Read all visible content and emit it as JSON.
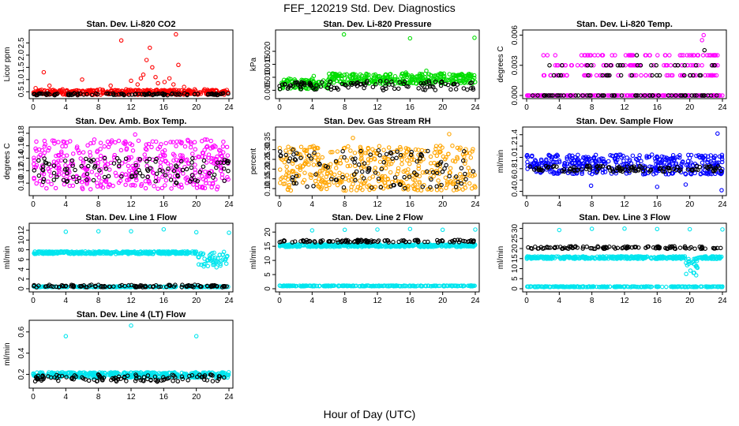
{
  "title": "FEF_120219  Std. Dev. Diagnostics",
  "xlabel": "Hour of Day (UTC)",
  "colors": {
    "black": "#000000",
    "red": "#ff0000",
    "green": "#00dd00",
    "magenta": "#ff00ff",
    "orange": "#ffa500",
    "blue": "#0000ff",
    "cyan": "#00e5ee"
  },
  "chart_data": [
    {
      "type": "scatter",
      "title": "Stan. Dev. Li-820 CO2",
      "ylabel": "Licor ppm",
      "xlim": [
        0,
        24
      ],
      "xticks": [
        "0",
        "4",
        "8",
        "12",
        "16",
        "20",
        "24"
      ],
      "ylim": [
        0.35,
        2.9
      ],
      "yticks": [
        "0.5",
        "1.0",
        "1.5",
        "2.0",
        "2.5"
      ],
      "series": [
        {
          "color": "red",
          "band": [
            0.38,
            0.58
          ],
          "points": [
            [
              1.3,
              1.3
            ],
            [
              6,
              1.0
            ],
            [
              10.8,
              2.6
            ],
            [
              12,
              0.95
            ],
            [
              12.8,
              0.8
            ],
            [
              13.2,
              1.05
            ],
            [
              13.5,
              1.2
            ],
            [
              13.9,
              1.8
            ],
            [
              14.3,
              2.3
            ],
            [
              14.6,
              1.5
            ],
            [
              15,
              1.1
            ],
            [
              15.3,
              0.85
            ],
            [
              16.1,
              0.9
            ],
            [
              16.7,
              1.05
            ],
            [
              17.2,
              0.8
            ],
            [
              17.5,
              2.85
            ],
            [
              17.8,
              1.6
            ],
            [
              18.5,
              0.7
            ],
            [
              19.8,
              0.6
            ],
            [
              0.3,
              0.65
            ],
            [
              2,
              0.75
            ],
            [
              3.6,
              0.6
            ],
            [
              8.2,
              0.6
            ],
            [
              9.5,
              0.75
            ],
            [
              11.4,
              0.6
            ],
            [
              21,
              0.6
            ],
            [
              22.5,
              0.55
            ]
          ]
        },
        {
          "color": "black",
          "band": [
            0.36,
            0.44
          ],
          "points": []
        }
      ]
    },
    {
      "type": "scatter",
      "title": "Stan. Dev. Li-820 Pressure",
      "ylabel": "kPa",
      "xlim": [
        0,
        24
      ],
      "xticks": [
        "0",
        "4",
        "8",
        "12",
        "16",
        "20",
        "24"
      ],
      "ylim": [
        0.003,
        0.027
      ],
      "yticks": [
        "0.005",
        "0.010",
        "0.015",
        "0.020"
      ],
      "series": [
        {
          "color": "green",
          "band": [
            0.0055,
            0.0095
          ],
          "band_late": [
            0.0075,
            0.0115
          ],
          "points": [
            [
              7.9,
              0.0265
            ],
            [
              16,
              0.025
            ],
            [
              23.9,
              0.0252
            ],
            [
              18,
              0.0125
            ],
            [
              15.5,
              0.0118
            ],
            [
              4.2,
              0.0105
            ]
          ]
        },
        {
          "color": "black",
          "band": [
            0.005,
            0.0085
          ],
          "points": []
        }
      ]
    },
    {
      "type": "scatter",
      "title": "Stan. Dev. Li-820 Temp.",
      "ylabel": "degrees C",
      "xlim": [
        0,
        24
      ],
      "xticks": [
        "0",
        "4",
        "8",
        "12",
        "16",
        "20",
        "24"
      ],
      "ylim": [
        0,
        0.0062
      ],
      "yticks": [
        "0.000",
        "0.003",
        "0.006"
      ],
      "series": [
        {
          "color": "magenta",
          "levels": [
            0.0,
            0.002,
            0.003,
            0.004
          ],
          "points": [
            [
              21.5,
              0.0055
            ],
            [
              21.7,
              0.006
            ]
          ]
        },
        {
          "color": "black",
          "levels": [
            0.0,
            0.002,
            0.003
          ],
          "points": [
            [
              13.5,
              0.004
            ],
            [
              21.8,
              0.0045
            ]
          ]
        }
      ]
    },
    {
      "type": "scatter",
      "title": "Stan. Dev. Amb. Box Temp.",
      "ylabel": "degrees C",
      "xlim": [
        0,
        24
      ],
      "xticks": [
        "0",
        "4",
        "8",
        "12",
        "16",
        "20",
        "24"
      ],
      "ylim": [
        0.085,
        0.185
      ],
      "yticks": [
        "0.10",
        "0.12",
        "0.14",
        "0.16",
        "0.18"
      ],
      "series": [
        {
          "color": "magenta",
          "band": [
            0.09,
            0.17
          ],
          "points": [
            [
              12.5,
              0.178
            ],
            [
              7.5,
              0.17
            ]
          ]
        },
        {
          "color": "black",
          "band": [
            0.1,
            0.14
          ],
          "points": []
        }
      ]
    },
    {
      "type": "scatter",
      "title": "Stan. Dev. Gas Stream RH",
      "ylabel": "percent",
      "xlim": [
        0,
        24
      ],
      "xticks": [
        "0",
        "4",
        "8",
        "12",
        "16",
        "20",
        "24"
      ],
      "ylim": [
        0.08,
        0.4
      ],
      "yticks": [
        "0.10",
        "0.15",
        "0.20",
        "0.25",
        "0.30",
        "0.35"
      ],
      "series": [
        {
          "color": "orange",
          "band": [
            0.09,
            0.32
          ],
          "points": [
            [
              20.8,
              0.38
            ],
            [
              9,
              0.36
            ]
          ]
        },
        {
          "color": "black",
          "band": [
            0.1,
            0.3
          ],
          "points": []
        }
      ]
    },
    {
      "type": "scatter",
      "title": "Stan. Dev. Sample Flow",
      "ylabel": "ml/min",
      "xlim": [
        0,
        24
      ],
      "xticks": [
        "0",
        "4",
        "8",
        "12",
        "16",
        "20",
        "24"
      ],
      "ylim": [
        0.38,
        1.48
      ],
      "yticks": [
        "0.4",
        "0.6",
        "0.8",
        "1.0",
        "1.2",
        "1.4"
      ],
      "series": [
        {
          "color": "blue",
          "band": [
            0.7,
            1.05
          ],
          "points": [
            [
              23.4,
              1.42
            ],
            [
              23.9,
              0.42
            ],
            [
              7.9,
              0.5
            ],
            [
              16,
              0.48
            ],
            [
              19.5,
              0.52
            ]
          ]
        },
        {
          "color": "black",
          "band": [
            0.75,
            0.85
          ],
          "points": []
        }
      ]
    },
    {
      "type": "scatter",
      "title": "Stan. Dev. Line 1 Flow",
      "ylabel": "ml/min",
      "xlim": [
        0,
        24
      ],
      "xticks": [
        "0",
        "4",
        "8",
        "12",
        "16",
        "20",
        "24"
      ],
      "ylim": [
        0,
        12.8
      ],
      "yticks": [
        "0",
        "2",
        "4",
        "6",
        "8",
        "10",
        "12"
      ],
      "series": [
        {
          "color": "cyan",
          "level": 7.4,
          "dip": [
            20,
            24,
            4.5
          ],
          "level2": 0.4,
          "points": [
            [
              4,
              11.7
            ],
            [
              8,
              11.8
            ],
            [
              12,
              11.8
            ],
            [
              16,
              12.2
            ],
            [
              20,
              11.6
            ],
            [
              24,
              11.5
            ]
          ]
        },
        {
          "color": "black",
          "level": 0.55,
          "points": []
        }
      ]
    },
    {
      "type": "scatter",
      "title": "Stan. Dev. Line 2 Flow",
      "ylabel": "ml/min",
      "xlim": [
        0,
        24
      ],
      "xticks": [
        "0",
        "4",
        "8",
        "12",
        "16",
        "20",
        "24"
      ],
      "ylim": [
        0,
        22
      ],
      "yticks": [
        "0",
        "5",
        "10",
        "15",
        "20"
      ],
      "series": [
        {
          "color": "cyan",
          "level": 15.2,
          "level2": 1.0,
          "points": [
            [
              4,
              20.6
            ],
            [
              8,
              20.8
            ],
            [
              12,
              20.9
            ],
            [
              16,
              21.1
            ],
            [
              20,
              20.8
            ],
            [
              24,
              20.9
            ]
          ]
        },
        {
          "color": "black",
          "level": 16.8,
          "points": []
        }
      ]
    },
    {
      "type": "scatter",
      "title": "Stan. Dev. Line 3 Flow",
      "ylabel": "ml/min",
      "xlim": [
        0,
        24
      ],
      "xticks": [
        "0",
        "4",
        "8",
        "12",
        "16",
        "20",
        "24"
      ],
      "ylim": [
        0,
        31
      ],
      "yticks": [
        "0",
        "5",
        "10",
        "15",
        "20",
        "25",
        "30"
      ],
      "series": [
        {
          "color": "cyan",
          "level": 15.5,
          "dip": [
            19.5,
            21,
            7
          ],
          "level2": 1.0,
          "points": [
            [
              4,
              29.2
            ],
            [
              8,
              29.8
            ],
            [
              12,
              29.9
            ],
            [
              16,
              29.7
            ],
            [
              20,
              29.6
            ],
            [
              24,
              29.5
            ]
          ]
        },
        {
          "color": "black",
          "level": 20.5,
          "points": []
        }
      ]
    },
    {
      "type": "scatter",
      "title": "Stan. Dev. Line 4 (LT) Flow",
      "ylabel": "ml/min",
      "xlim": [
        0,
        24
      ],
      "xticks": [
        "0",
        "4",
        "8",
        "12",
        "16",
        "20",
        "24"
      ],
      "ylim": [
        0.1,
        0.68
      ],
      "yticks": [
        "0.2",
        "0.4",
        "0.6"
      ],
      "series": [
        {
          "color": "cyan",
          "band": [
            0.17,
            0.22
          ],
          "points": [
            [
              4,
              0.56
            ],
            [
              12,
              0.66
            ],
            [
              20,
              0.56
            ]
          ]
        },
        {
          "color": "black",
          "band": [
            0.13,
            0.2
          ],
          "points": []
        }
      ]
    }
  ]
}
